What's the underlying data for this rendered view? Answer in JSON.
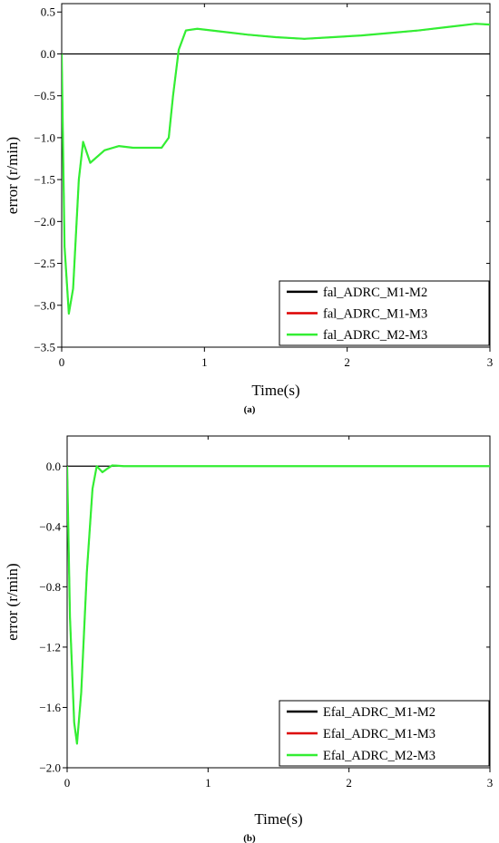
{
  "chart_data": [
    {
      "type": "line",
      "caption": "(a)",
      "xlabel": "Time(s)",
      "ylabel": "error (r/min)",
      "xlim": [
        0,
        3
      ],
      "ylim": [
        -3.5,
        0.6
      ],
      "xticks": [
        0,
        1,
        2,
        3
      ],
      "xtick_labels": [
        "0",
        "1",
        "2",
        "3"
      ],
      "yticks": [
        0.5,
        0.0,
        -0.5,
        -1.0,
        -1.5,
        -2.0,
        -2.5,
        -3.0,
        -3.5
      ],
      "ytick_labels": [
        "0.5",
        "0.0",
        "−0.5",
        "−1.0",
        "−1.5",
        "−2.0",
        "−2.5",
        "−3.0",
        "−3.5"
      ],
      "reference_line_y": 0,
      "legend_position": "bottom-right",
      "series": [
        {
          "name": "fal_ADRC_M1-M2",
          "color": "#000000",
          "x": [
            0,
            0.02,
            0.05,
            0.08,
            0.12,
            0.15,
            0.2,
            0.3,
            0.4,
            0.5,
            0.6,
            0.7,
            0.75,
            0.78,
            0.82,
            0.87,
            0.95,
            1.1,
            1.3,
            1.5,
            1.7,
            1.9,
            2.1,
            2.3,
            2.5,
            2.7,
            2.9,
            3.0
          ],
          "y": [
            0,
            -2.3,
            -3.1,
            -2.8,
            -1.5,
            -1.05,
            -1.3,
            -1.15,
            -1.1,
            -1.12,
            -1.12,
            -1.12,
            -1.0,
            -0.5,
            0.05,
            0.28,
            0.3,
            0.27,
            0.23,
            0.2,
            0.18,
            0.2,
            0.22,
            0.25,
            0.28,
            0.32,
            0.36,
            0.35
          ]
        },
        {
          "name": "fal_ADRC_M1-M3",
          "color": "#dd0000",
          "x": [
            0,
            0.02,
            0.05,
            0.08,
            0.12,
            0.15,
            0.2,
            0.3,
            0.4,
            0.5,
            0.6,
            0.7,
            0.75,
            0.78,
            0.82,
            0.87,
            0.95,
            1.1,
            1.3,
            1.5,
            1.7,
            1.9,
            2.1,
            2.3,
            2.5,
            2.7,
            2.9,
            3.0
          ],
          "y": [
            0,
            -2.3,
            -3.1,
            -2.8,
            -1.5,
            -1.05,
            -1.3,
            -1.15,
            -1.1,
            -1.12,
            -1.12,
            -1.12,
            -1.0,
            -0.5,
            0.05,
            0.28,
            0.3,
            0.27,
            0.23,
            0.2,
            0.18,
            0.2,
            0.22,
            0.25,
            0.28,
            0.32,
            0.36,
            0.35
          ]
        },
        {
          "name": "fal_ADRC_M2-M3",
          "color": "#33ee33",
          "x": [
            0,
            0.02,
            0.05,
            0.08,
            0.12,
            0.15,
            0.2,
            0.3,
            0.4,
            0.5,
            0.6,
            0.7,
            0.75,
            0.78,
            0.82,
            0.87,
            0.95,
            1.1,
            1.3,
            1.5,
            1.7,
            1.9,
            2.1,
            2.3,
            2.5,
            2.7,
            2.9,
            3.0
          ],
          "y": [
            0,
            -2.3,
            -3.1,
            -2.8,
            -1.5,
            -1.05,
            -1.3,
            -1.15,
            -1.1,
            -1.12,
            -1.12,
            -1.12,
            -1.0,
            -0.5,
            0.05,
            0.28,
            0.3,
            0.27,
            0.23,
            0.2,
            0.18,
            0.2,
            0.22,
            0.25,
            0.28,
            0.32,
            0.36,
            0.35
          ]
        }
      ]
    },
    {
      "type": "line",
      "caption": "(b)",
      "xlabel": "Time(s)",
      "ylabel": "error (r/min)",
      "xlim": [
        0,
        3
      ],
      "ylim": [
        -2.0,
        0.2
      ],
      "xticks": [
        0,
        1,
        2,
        3
      ],
      "xtick_labels": [
        "0",
        "1",
        "2",
        "3"
      ],
      "yticks": [
        0.0,
        -0.4,
        -0.8,
        -1.2,
        -1.6,
        -2.0
      ],
      "ytick_labels": [
        "0.0",
        "−0.4",
        "−0.8",
        "−1.2",
        "−1.6",
        "−2.0"
      ],
      "reference_line_y": 0,
      "legend_position": "bottom-right",
      "series": [
        {
          "name": "Efal_ADRC_M1-M2",
          "color": "#000000",
          "x": [
            0,
            0.02,
            0.05,
            0.07,
            0.1,
            0.14,
            0.18,
            0.21,
            0.25,
            0.28,
            0.32,
            0.4,
            0.5,
            0.6,
            0.8,
            1.0,
            1.5,
            2.0,
            2.5,
            3.0
          ],
          "y": [
            0,
            -1.0,
            -1.7,
            -1.84,
            -1.5,
            -0.7,
            -0.15,
            0.0,
            -0.04,
            -0.02,
            0.005,
            0.0,
            0.0,
            0.0,
            0.0,
            0.0,
            0.0,
            0.0,
            0.0,
            0.0
          ]
        },
        {
          "name": "Efal_ADRC_M1-M3",
          "color": "#dd0000",
          "x": [
            0,
            0.02,
            0.05,
            0.07,
            0.1,
            0.14,
            0.18,
            0.21,
            0.25,
            0.28,
            0.32,
            0.4,
            0.5,
            0.6,
            0.8,
            1.0,
            1.5,
            2.0,
            2.5,
            3.0
          ],
          "y": [
            0,
            -1.0,
            -1.7,
            -1.84,
            -1.5,
            -0.7,
            -0.15,
            0.0,
            -0.04,
            -0.02,
            0.005,
            0.0,
            0.0,
            0.0,
            0.0,
            0.0,
            0.0,
            0.0,
            0.0,
            0.0
          ]
        },
        {
          "name": "Efal_ADRC_M2-M3",
          "color": "#33ee33",
          "x": [
            0,
            0.02,
            0.05,
            0.07,
            0.1,
            0.14,
            0.18,
            0.21,
            0.25,
            0.28,
            0.32,
            0.4,
            0.5,
            0.6,
            0.8,
            1.0,
            1.5,
            2.0,
            2.5,
            3.0
          ],
          "y": [
            0,
            -1.0,
            -1.7,
            -1.84,
            -1.5,
            -0.7,
            -0.15,
            0.0,
            -0.04,
            -0.02,
            0.005,
            0.0,
            0.0,
            0.0,
            0.0,
            0.0,
            0.0,
            0.0,
            0.0,
            0.0
          ]
        }
      ]
    }
  ]
}
